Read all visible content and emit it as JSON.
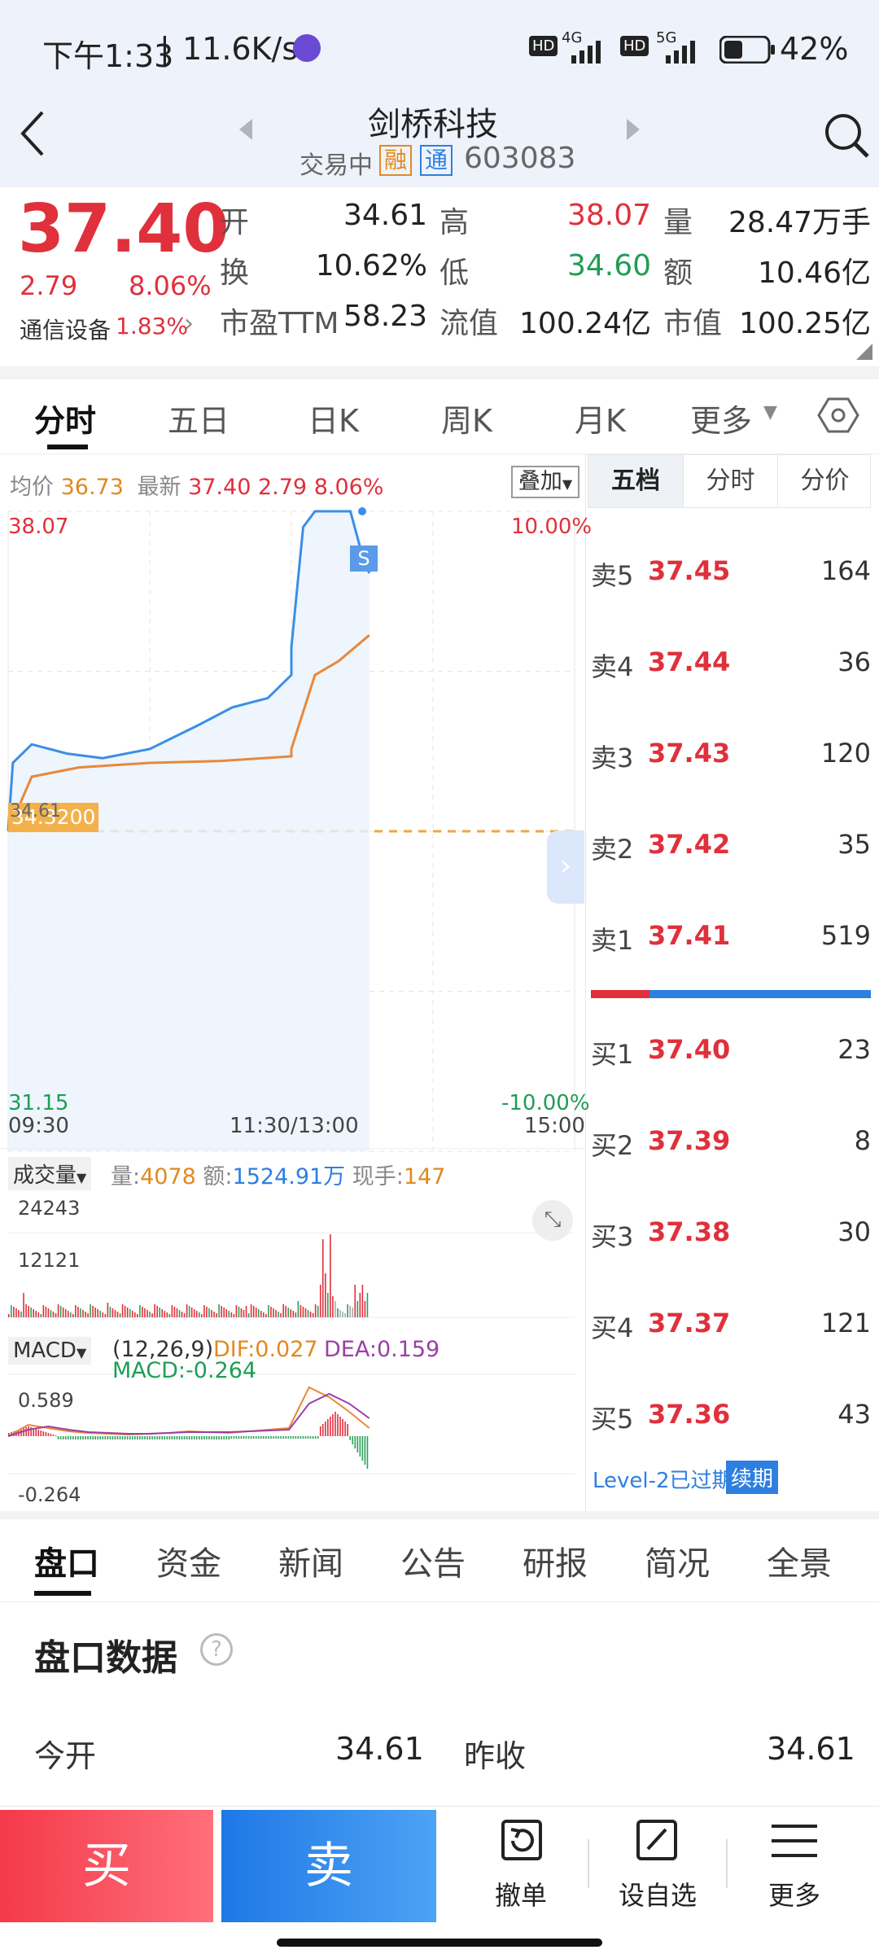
{
  "status_bar": {
    "time": "下午1:33",
    "speed": "11.6K/s",
    "signal1": "4G",
    "signal2": "5G",
    "battery": "42%"
  },
  "header": {
    "title": "剑桥科技",
    "status": "交易中",
    "tag_rong": "融",
    "tag_tong": "通",
    "code": "603083"
  },
  "quote": {
    "price": "37.40",
    "change": "2.79",
    "change_pct": "8.06%",
    "sector": "通信设备",
    "sector_pct": "1.83%",
    "fields": [
      {
        "label": "开",
        "value": "34.61",
        "color": "#222222"
      },
      {
        "label": "高",
        "value": "38.07",
        "color": "#e0303c"
      },
      {
        "label": "量",
        "value": "28.47万手",
        "color": "#222222"
      },
      {
        "label": "换",
        "value": "10.62%",
        "color": "#222222"
      },
      {
        "label": "低",
        "value": "34.60",
        "color": "#1f9d55"
      },
      {
        "label": "额",
        "value": "10.46亿",
        "color": "#222222"
      },
      {
        "label": "市盈TTM",
        "value": "58.23",
        "color": "#222222"
      },
      {
        "label": "流值",
        "value": "100.24亿",
        "color": "#222222"
      },
      {
        "label": "市值",
        "value": "100.25亿",
        "color": "#222222"
      }
    ]
  },
  "chart_tabs": [
    "分时",
    "五日",
    "日K",
    "周K",
    "月K",
    "更多"
  ],
  "intraday": {
    "avg_label": "均价",
    "avg_value": "36.73",
    "latest_label": "最新",
    "latest_value": "37.40",
    "latest_change": "2.79",
    "latest_pct": "8.06%",
    "overlay_button": "叠加",
    "y_high": "38.07",
    "y_low": "31.15",
    "pct_high": "10.00%",
    "pct_low": "-10.00%",
    "ref_value": "34.3200",
    "ref_open": "34.61",
    "sell_marker": "S",
    "time_start": "09:30",
    "time_mid": "11:30/13:00",
    "time_end": "15:00"
  },
  "volume": {
    "selector": "成交量",
    "vol_label": "量:",
    "vol_value": "4078",
    "amt_label": "额:",
    "amt_value": "1524.91万",
    "cur_label": "现手:",
    "cur_value": "147",
    "tick_high": "24243",
    "tick_mid": "12121"
  },
  "macd": {
    "selector": "MACD",
    "params": "(12,26,9)",
    "dif": "DIF:0.027",
    "dea": "DEA:0.159",
    "macd": "MACD:-0.264",
    "tick_high": "0.589",
    "tick_low": "-0.264"
  },
  "order_book": {
    "tabs": [
      "五档",
      "分时",
      "分价"
    ],
    "asks": [
      {
        "label": "卖5",
        "price": "37.45",
        "vol": "164"
      },
      {
        "label": "卖4",
        "price": "37.44",
        "vol": "36"
      },
      {
        "label": "卖3",
        "price": "37.43",
        "vol": "120"
      },
      {
        "label": "卖2",
        "price": "37.42",
        "vol": "35"
      },
      {
        "label": "卖1",
        "price": "37.41",
        "vol": "519"
      }
    ],
    "bids": [
      {
        "label": "买1",
        "price": "37.40",
        "vol": "23"
      },
      {
        "label": "买2",
        "price": "37.39",
        "vol": "8"
      },
      {
        "label": "买3",
        "price": "37.38",
        "vol": "30"
      },
      {
        "label": "买4",
        "price": "37.37",
        "vol": "121"
      },
      {
        "label": "买5",
        "price": "37.36",
        "vol": "43"
      }
    ],
    "level2_text": "Level-2已过期",
    "renew_button": "续期"
  },
  "bottom_tabs": [
    "盘口",
    "资金",
    "新闻",
    "公告",
    "研报",
    "简况",
    "全景"
  ],
  "panel": {
    "title": "盘口数据",
    "rows": [
      {
        "label": "今开",
        "value": "34.61",
        "label2": "昨收",
        "value2": "34.61"
      }
    ]
  },
  "actions": {
    "buy": "买",
    "sell": "卖",
    "cancel": "撤单",
    "watchlist": "设自选",
    "more": "更多"
  },
  "chart_data": {
    "type": "line",
    "title": "",
    "x_range": [
      "09:30",
      "15:00"
    ],
    "ylim": [
      31.15,
      38.07
    ],
    "prev_close": 34.61,
    "series": [
      {
        "name": "最新",
        "x": [
          "09:30",
          "09:32",
          "09:40",
          "09:55",
          "10:10",
          "10:30",
          "10:50",
          "11:05",
          "11:20",
          "11:30",
          "13:00",
          "13:05",
          "13:10",
          "13:15",
          "13:20",
          "13:25",
          "13:30",
          "13:33"
        ],
        "values": [
          34.61,
          35.35,
          35.55,
          35.45,
          35.4,
          35.5,
          35.75,
          35.95,
          36.05,
          36.3,
          36.6,
          37.9,
          38.07,
          38.07,
          38.07,
          38.07,
          37.6,
          37.4
        ]
      },
      {
        "name": "均价",
        "x": [
          "09:30",
          "09:40",
          "10:00",
          "10:30",
          "11:00",
          "11:30",
          "13:00",
          "13:10",
          "13:20",
          "13:33"
        ],
        "values": [
          34.61,
          35.2,
          35.3,
          35.35,
          35.37,
          35.42,
          35.5,
          36.3,
          36.45,
          36.73
        ]
      }
    ]
  }
}
